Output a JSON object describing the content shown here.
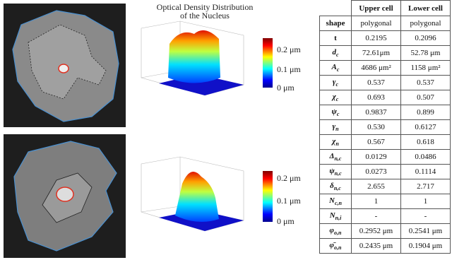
{
  "plot": {
    "title_lines": [
      "Optical Density Distribution",
      "of the Nucleus"
    ],
    "colorbars": [
      {
        "ticks": [
          "0.2 μm",
          "0.1 μm",
          "0 μm"
        ]
      },
      {
        "ticks": [
          "0.2 μm",
          "0.1 μm",
          "0 μm"
        ]
      }
    ]
  },
  "table": {
    "header": [
      "Upper cell",
      "Lower cell"
    ],
    "rows": [
      {
        "label": {
          "symbol": "shape"
        },
        "cells": [
          "polygonal",
          "polygonal"
        ]
      },
      {
        "label": {
          "symbol": "t"
        },
        "cells": [
          "0.2195",
          "0.2096"
        ]
      },
      {
        "label": {
          "symbol": "d",
          "sub": "c"
        },
        "cells": [
          "72.61μm",
          "52.78 μm"
        ]
      },
      {
        "label": {
          "symbol": "A",
          "sub": "c"
        },
        "cells": [
          "4686 μm²",
          "1158 μm²"
        ]
      },
      {
        "label": {
          "symbol": "γ",
          "sub": "c"
        },
        "cells": [
          "0.537",
          "0.537"
        ]
      },
      {
        "label": {
          "symbol": "χ",
          "sub": "c"
        },
        "cells": [
          "0.693",
          "0.507"
        ]
      },
      {
        "label": {
          "symbol": "ψ",
          "sub": "c"
        },
        "cells": [
          "0.9837",
          "0.899"
        ]
      },
      {
        "label": {
          "symbol": "γ",
          "sub": "n"
        },
        "cells": [
          "0.530",
          "0.6127"
        ]
      },
      {
        "label": {
          "symbol": "χ",
          "sub": "n"
        },
        "cells": [
          "0.567",
          "0.618"
        ]
      },
      {
        "label": {
          "symbol": "Δ",
          "sub": "n,c"
        },
        "cells": [
          "0.0129",
          "0.0486"
        ]
      },
      {
        "label": {
          "symbol": "ψ",
          "sub": "n,c"
        },
        "cells": [
          "0.0273",
          "0.1114"
        ]
      },
      {
        "label": {
          "symbol": "δ",
          "sub": "n,c"
        },
        "cells": [
          "2.655",
          "2.717"
        ]
      },
      {
        "label": {
          "symbol": "N",
          "sub": "c,n"
        },
        "cells": [
          "1",
          "1"
        ]
      },
      {
        "label": {
          "symbol": "N",
          "sub": "n,i"
        },
        "cells": [
          "-",
          "-"
        ]
      },
      {
        "label": {
          "symbol": "φ",
          "sub": "o,n"
        },
        "cells": [
          "0.2952 μm",
          "0.2541 μm"
        ]
      },
      {
        "label": {
          "symbol": "φ̄",
          "sub": "o,n"
        },
        "cells": [
          "0.2435 μm",
          "0.1904 μm"
        ]
      }
    ]
  }
}
